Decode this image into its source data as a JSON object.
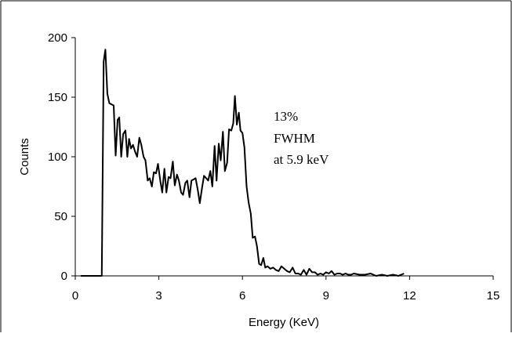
{
  "chart_data": {
    "type": "line",
    "title": "",
    "xlabel": "Energy (KeV)",
    "ylabel": "Counts",
    "xlim": [
      0,
      15
    ],
    "ylim": [
      0,
      200
    ],
    "x_ticks": [
      "0",
      "3",
      "6",
      "9",
      "12",
      "15"
    ],
    "y_ticks": [
      "0",
      "50",
      "100",
      "150",
      "200"
    ],
    "grid": false,
    "legend": "none",
    "annotation": [
      "13%",
      "FWHM",
      "at 5.9 keV"
    ],
    "line_color": "#000000",
    "series": [
      {
        "x": [
          0.2,
          0.6,
          0.95,
          1.02,
          1.08,
          1.15,
          1.22,
          1.3,
          1.38,
          1.45,
          1.52,
          1.58,
          1.65,
          1.72,
          1.8,
          1.87,
          1.93,
          2.0,
          2.07,
          2.15,
          2.22,
          2.3,
          2.37,
          2.45,
          2.52,
          2.6,
          2.67,
          2.75,
          2.82,
          2.9,
          2.97,
          3.05,
          3.12,
          3.2,
          3.27,
          3.35,
          3.42,
          3.5,
          3.57,
          3.65,
          3.72,
          3.8,
          3.87,
          3.95,
          4.02,
          4.1,
          4.17,
          4.25,
          4.32,
          4.4,
          4.47,
          4.55,
          4.62,
          4.7,
          4.77,
          4.85,
          4.92,
          5.0,
          5.07,
          5.15,
          5.22,
          5.3,
          5.37,
          5.45,
          5.52,
          5.6,
          5.67,
          5.73,
          5.8,
          5.87,
          5.93,
          6.0,
          6.07,
          6.15,
          6.22,
          6.3,
          6.37,
          6.45,
          6.52,
          6.6,
          6.67,
          6.75,
          6.82,
          6.9,
          7.0,
          7.1,
          7.2,
          7.3,
          7.4,
          7.5,
          7.6,
          7.7,
          7.8,
          7.9,
          8.0,
          8.1,
          8.2,
          8.3,
          8.4,
          8.5,
          8.6,
          8.7,
          8.8,
          8.9,
          9.0,
          9.1,
          9.2,
          9.3,
          9.4,
          9.5,
          9.6,
          9.7,
          9.8,
          9.9,
          10.0,
          10.2,
          10.4,
          10.6,
          10.8,
          11.0,
          11.2,
          11.4,
          11.6,
          11.8
        ],
        "values": [
          0,
          0,
          0,
          180,
          190,
          153,
          145,
          144,
          143,
          101,
          131,
          133,
          100,
          119,
          122,
          100,
          115,
          107,
          110,
          104,
          100,
          116,
          110,
          100,
          97,
          80,
          82,
          75,
          87,
          86,
          94,
          80,
          70,
          90,
          70,
          83,
          82,
          96,
          76,
          85,
          80,
          70,
          68,
          78,
          80,
          66,
          80,
          81,
          82,
          72,
          61,
          74,
          84,
          82,
          80,
          88,
          75,
          109,
          80,
          111,
          97,
          121,
          88,
          95,
          123,
          122,
          128,
          151,
          127,
          137,
          122,
          120,
          108,
          75,
          62,
          52,
          32,
          33,
          25,
          10,
          9,
          15,
          7,
          8,
          6,
          7,
          5,
          4,
          8,
          6,
          4,
          3,
          7,
          2,
          2,
          1,
          5,
          1,
          6,
          3,
          3,
          1,
          2,
          1,
          3,
          2,
          4,
          1,
          2,
          2,
          1,
          2,
          1,
          1,
          2,
          1,
          1,
          2,
          0,
          1,
          0,
          1,
          0,
          2
        ]
      }
    ]
  }
}
